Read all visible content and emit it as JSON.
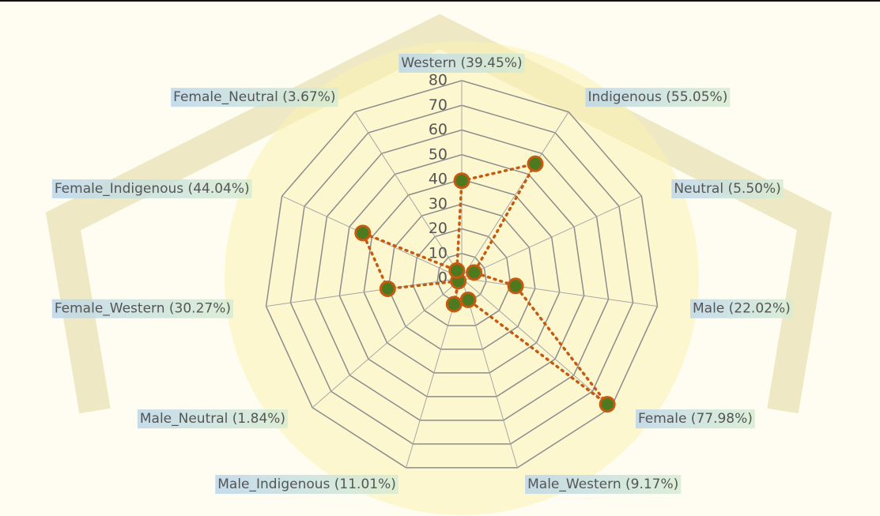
{
  "chart_data": {
    "type": "radar",
    "categories": [
      "Western (39.45%)",
      "Indigenous (55.05%)",
      "Neutral (5.50%)",
      "Male (22.02%)",
      "Female (77.98%)",
      "Male_Western (9.17%)",
      "Male_Indigenous (11.01%)",
      "Male_Neutral (1.84%)",
      "Female_Western (30.27%)",
      "Female_Indigenous (44.04%)",
      "Female_Neutral (3.67%)"
    ],
    "values": [
      39.45,
      55.05,
      5.5,
      22.02,
      77.98,
      9.17,
      11.01,
      1.84,
      30.27,
      44.04,
      3.67
    ],
    "color": "#c55a11",
    "marker_color": "#4e7a1f",
    "ylim": [
      0,
      80
    ],
    "yticks": [
      0,
      10,
      20,
      30,
      40,
      50,
      60,
      70,
      80
    ],
    "grid": true
  }
}
